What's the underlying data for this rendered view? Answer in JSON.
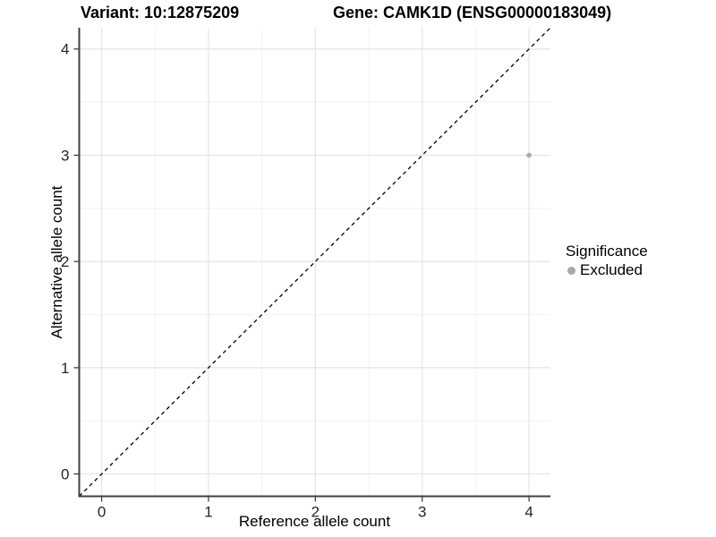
{
  "chart_data": {
    "type": "scatter",
    "titles": {
      "left": "Variant: 10:12875209",
      "right": "Gene: CAMK1D (ENSG00000183049)"
    },
    "xlabel": "Reference allele count",
    "ylabel": "Alternative allele count",
    "xticks": [
      0,
      1,
      2,
      3,
      4
    ],
    "yticks": [
      0,
      1,
      2,
      3,
      4
    ],
    "xlim": [
      -0.21,
      4.2
    ],
    "ylim": [
      -0.21,
      4.2
    ],
    "grid": {
      "major": true,
      "minor": true
    },
    "identity_line": {
      "style": "dashed",
      "color": "#000000",
      "from": -0.21,
      "to": 4.2
    },
    "series": [
      {
        "name": "Excluded",
        "color": "#a8a8a8",
        "points": [
          {
            "x": 4,
            "y": 3
          }
        ]
      }
    ],
    "legend": {
      "title": "Significance",
      "position": "right",
      "items": [
        {
          "label": "Excluded",
          "color": "#a8a8a8"
        }
      ]
    }
  }
}
